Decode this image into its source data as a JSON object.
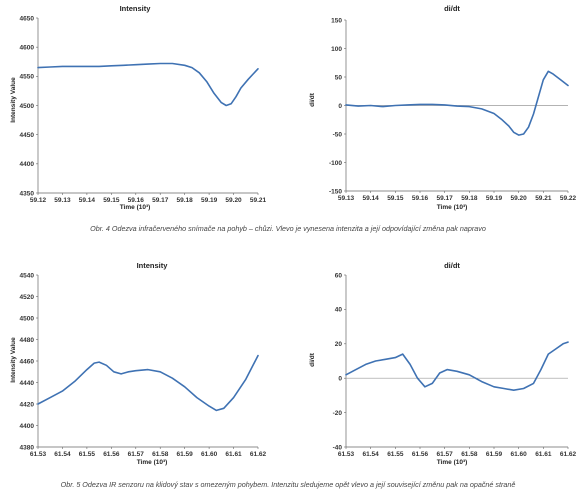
{
  "captions": {
    "fig4": "Obr. 4  Odezva infračerveného snímače na pohyb – chůzi. Vlevo je vynesena intenzita a její odpovídající změna pak napravo",
    "fig5": "Obr. 5  Odezva IR senzoru na klidový stav s omezeným pohybem. Intenzitu sledujeme opět vlevo a její související změnu pak na opačné straně"
  },
  "colors": {
    "line": "#3f72b3",
    "zero_line": "#9a9a9a",
    "axis": "#666666"
  },
  "chart_data": [
    {
      "type": "line",
      "title": "Intensity",
      "xlabel": "Time (10³)",
      "ylabel": "Intensity Value",
      "xlim": [
        59.12,
        59.21
      ],
      "ylim": [
        4350,
        4650
      ],
      "xticks": [
        "59.12",
        "59.13",
        "59.14",
        "59.15",
        "59.16",
        "59.17",
        "59.18",
        "59.19",
        "59.20",
        "59.21"
      ],
      "yticks": [
        "4650",
        "4600",
        "4550",
        "4500",
        "4450",
        "4400",
        "4350"
      ],
      "zero_line": false,
      "x": [
        59.12,
        59.125,
        59.13,
        59.135,
        59.14,
        59.145,
        59.15,
        59.155,
        59.16,
        59.165,
        59.17,
        59.175,
        59.18,
        59.183,
        59.186,
        59.189,
        59.192,
        59.195,
        59.197,
        59.199,
        59.201,
        59.203,
        59.206,
        59.21
      ],
      "y": [
        4565,
        4566,
        4567,
        4567,
        4567,
        4567,
        4568,
        4569,
        4570,
        4571,
        4572,
        4572,
        4569,
        4565,
        4556,
        4541,
        4521,
        4505,
        4500,
        4503,
        4515,
        4530,
        4545,
        4563
      ]
    },
    {
      "type": "line",
      "title": "di/dt",
      "xlabel": "Time (10³)",
      "ylabel": "di/dt",
      "xlim": [
        59.13,
        59.22
      ],
      "ylim": [
        -150,
        150
      ],
      "xticks": [
        "59.13",
        "59.14",
        "59.15",
        "59.16",
        "59.17",
        "59.18",
        "59.19",
        "59.20",
        "59.21",
        "59.22"
      ],
      "yticks": [
        "150",
        "100",
        "50",
        "0",
        "-50",
        "-100",
        "-150"
      ],
      "zero_line": true,
      "x": [
        59.13,
        59.135,
        59.14,
        59.145,
        59.15,
        59.155,
        59.16,
        59.165,
        59.17,
        59.175,
        59.18,
        59.185,
        59.19,
        59.193,
        59.196,
        59.198,
        59.2,
        59.202,
        59.204,
        59.206,
        59.208,
        59.21,
        59.212,
        59.214,
        59.217,
        59.22
      ],
      "y": [
        1,
        -1,
        0,
        -2,
        0,
        1,
        2,
        2,
        1,
        -1,
        -2,
        -6,
        -14,
        -24,
        -36,
        -47,
        -52,
        -50,
        -38,
        -15,
        15,
        45,
        60,
        55,
        45,
        35
      ]
    },
    {
      "type": "line",
      "title": "Intensity",
      "xlabel": "Time (10³)",
      "ylabel": "Intensity Value",
      "xlim": [
        61.53,
        61.62
      ],
      "ylim": [
        4380,
        4540
      ],
      "xticks": [
        "61.53",
        "61.54",
        "61.55",
        "61.56",
        "61.57",
        "61.58",
        "61.59",
        "61.60",
        "61.61",
        "61.62"
      ],
      "yticks": [
        "4540",
        "4520",
        "4500",
        "4480",
        "4460",
        "4440",
        "4420",
        "4400",
        "4380"
      ],
      "zero_line": false,
      "x": [
        61.53,
        61.535,
        61.54,
        61.545,
        61.55,
        61.553,
        61.555,
        61.558,
        61.561,
        61.564,
        61.567,
        61.57,
        61.575,
        61.58,
        61.585,
        61.59,
        61.595,
        61.6,
        61.603,
        61.606,
        61.61,
        61.615,
        61.62
      ],
      "y": [
        4420,
        4426,
        4432,
        4441,
        4452,
        4458,
        4459,
        4456,
        4450,
        4448,
        4450,
        4451,
        4452,
        4450,
        4444,
        4436,
        4426,
        4418,
        4414,
        4416,
        4426,
        4443,
        4465
      ]
    },
    {
      "type": "line",
      "title": "di/dt",
      "xlabel": "Time (10³)",
      "ylabel": "di/dt",
      "xlim": [
        61.53,
        61.62
      ],
      "ylim": [
        -40,
        60
      ],
      "xticks": [
        "61.53",
        "61.54",
        "61.55",
        "61.56",
        "61.57",
        "61.58",
        "61.59",
        "61.60",
        "61.61",
        "61.62"
      ],
      "yticks": [
        "60",
        "40",
        "20",
        "0",
        "-20",
        "-40"
      ],
      "zero_line": true,
      "x": [
        61.53,
        61.534,
        61.538,
        61.542,
        61.546,
        61.55,
        61.553,
        61.556,
        61.559,
        61.562,
        61.565,
        61.568,
        61.571,
        61.575,
        61.58,
        61.585,
        61.59,
        61.594,
        61.598,
        61.602,
        61.606,
        61.609,
        61.612,
        61.615,
        61.618,
        61.62
      ],
      "y": [
        2,
        5,
        8,
        10,
        11,
        12,
        14,
        8,
        0,
        -5,
        -3,
        3,
        5,
        4,
        2,
        -2,
        -5,
        -6,
        -7,
        -6,
        -3,
        5,
        14,
        17,
        20,
        21
      ]
    }
  ]
}
